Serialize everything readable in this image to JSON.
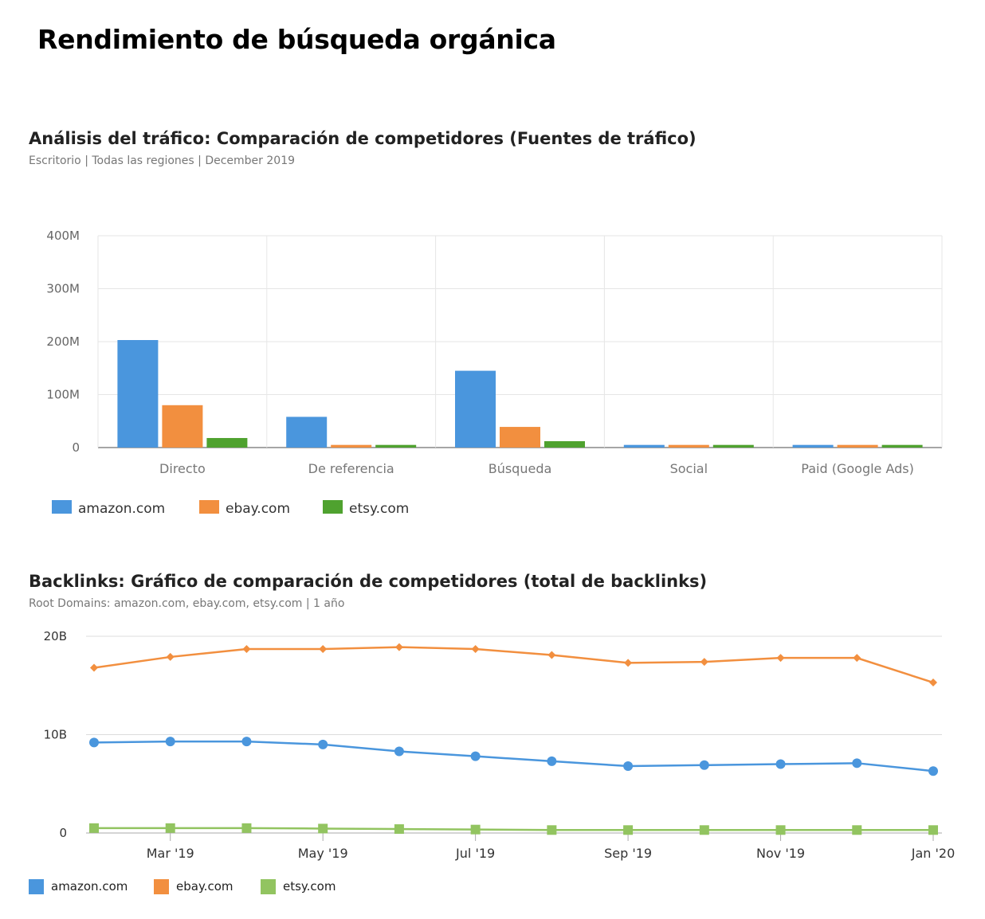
{
  "page": {
    "title": "Rendimiento de búsqueda orgánica"
  },
  "colors": {
    "amazon": "#4a96dd",
    "ebay": "#f28f3f",
    "etsy": "#4fa22f",
    "etsy_light": "#92c460"
  },
  "chart_data": [
    {
      "type": "bar",
      "title": "Análisis del tráfico: Comparación de competidores (Fuentes de tráfico)",
      "subtitle": "Escritorio | Todas las regiones | December 2019",
      "categories": [
        "Directo",
        "De referencia",
        "Búsqueda",
        "Social",
        "Paid (Google Ads)"
      ],
      "series": [
        {
          "name": "amazon.com",
          "color": "#4a96dd",
          "values": [
            203,
            58,
            145,
            5,
            5
          ]
        },
        {
          "name": "ebay.com",
          "color": "#f28f3f",
          "values": [
            80,
            5,
            39,
            5,
            5
          ]
        },
        {
          "name": "etsy.com",
          "color": "#4fa22f",
          "values": [
            18,
            5,
            12,
            5,
            5
          ]
        }
      ],
      "yticks": [
        "0",
        "100M",
        "200M",
        "300M",
        "400M"
      ],
      "ylim": [
        0,
        400
      ],
      "yunit": "M",
      "grid": true,
      "legend": "bottom-left"
    },
    {
      "type": "line",
      "title": "Backlinks: Gráfico de comparación de competidores (total de backlinks)",
      "subtitle": "Root Domains: amazon.com, ebay.com, etsy.com | 1 año",
      "x_ticks": [
        "Mar '19",
        "May '19",
        "Jul '19",
        "Sep '19",
        "Nov '19",
        "Jan '20"
      ],
      "series": [
        {
          "name": "ebay.com",
          "color": "#f28f3f",
          "marker": "diamond",
          "values": [
            16.8,
            17.9,
            18.7,
            18.7,
            18.9,
            18.7,
            18.1,
            17.3,
            17.4,
            17.8,
            17.8,
            15.3
          ]
        },
        {
          "name": "amazon.com",
          "color": "#4a96dd",
          "marker": "circle",
          "values": [
            9.2,
            9.3,
            9.3,
            9.0,
            8.3,
            7.8,
            7.3,
            6.8,
            6.9,
            7.0,
            7.1,
            6.3
          ]
        },
        {
          "name": "etsy.com",
          "color": "#92c460",
          "marker": "square",
          "values": [
            0.5,
            0.5,
            0.5,
            0.45,
            0.4,
            0.35,
            0.3,
            0.3,
            0.3,
            0.3,
            0.3,
            0.3
          ]
        }
      ],
      "legend_order": [
        "amazon.com",
        "ebay.com",
        "etsy.com"
      ],
      "yticks": [
        "0",
        "10B",
        "20B"
      ],
      "ylim": [
        0,
        20
      ],
      "yunit": "B",
      "grid": true,
      "legend": "bottom-left"
    }
  ]
}
